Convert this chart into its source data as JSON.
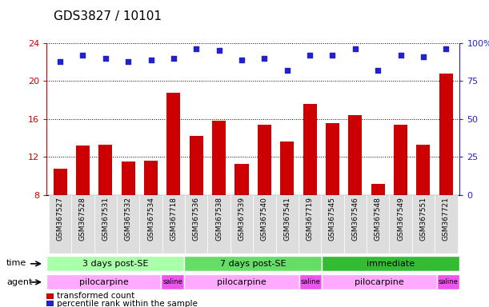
{
  "title": "GDS3827 / 10101",
  "samples": [
    "GSM367527",
    "GSM367528",
    "GSM367531",
    "GSM367532",
    "GSM367534",
    "GSM367718",
    "GSM367536",
    "GSM367538",
    "GSM367539",
    "GSM367540",
    "GSM367541",
    "GSM367719",
    "GSM367545",
    "GSM367546",
    "GSM367548",
    "GSM367549",
    "GSM367551",
    "GSM367721"
  ],
  "bar_values": [
    10.8,
    13.2,
    13.3,
    11.5,
    11.6,
    18.8,
    14.2,
    15.8,
    11.3,
    15.4,
    13.6,
    17.6,
    15.6,
    16.4,
    9.2,
    15.4,
    13.3,
    20.8
  ],
  "dot_values_pct": [
    88,
    92,
    90,
    88,
    89,
    90,
    96,
    95,
    89,
    90,
    82,
    92,
    92,
    96,
    82,
    92,
    91,
    96
  ],
  "bar_color": "#cc0000",
  "dot_color": "#2222cc",
  "ylim_left": [
    8,
    24
  ],
  "ylim_right": [
    0,
    100
  ],
  "yticks_left": [
    8,
    12,
    16,
    20,
    24
  ],
  "yticks_right": [
    0,
    25,
    50,
    75,
    100
  ],
  "time_groups": [
    {
      "label": "3 days post-SE",
      "start": 0,
      "end": 5,
      "color": "#aaffaa"
    },
    {
      "label": "7 days post-SE",
      "start": 6,
      "end": 11,
      "color": "#66dd66"
    },
    {
      "label": "immediate",
      "start": 12,
      "end": 17,
      "color": "#33bb33"
    }
  ],
  "agent_groups": [
    {
      "label": "pilocarpine",
      "start": 0,
      "end": 4,
      "color": "#ffaaff"
    },
    {
      "label": "saline",
      "start": 5,
      "end": 5,
      "color": "#ee55ee"
    },
    {
      "label": "pilocarpine",
      "start": 6,
      "end": 10,
      "color": "#ffaaff"
    },
    {
      "label": "saline",
      "start": 11,
      "end": 11,
      "color": "#ee55ee"
    },
    {
      "label": "pilocarpine",
      "start": 12,
      "end": 16,
      "color": "#ffaaff"
    },
    {
      "label": "saline",
      "start": 17,
      "end": 17,
      "color": "#ee55ee"
    }
  ],
  "legend_items": [
    {
      "label": "transformed count",
      "color": "#cc0000"
    },
    {
      "label": "percentile rank within the sample",
      "color": "#2222cc"
    }
  ],
  "time_label": "time",
  "agent_label": "agent"
}
